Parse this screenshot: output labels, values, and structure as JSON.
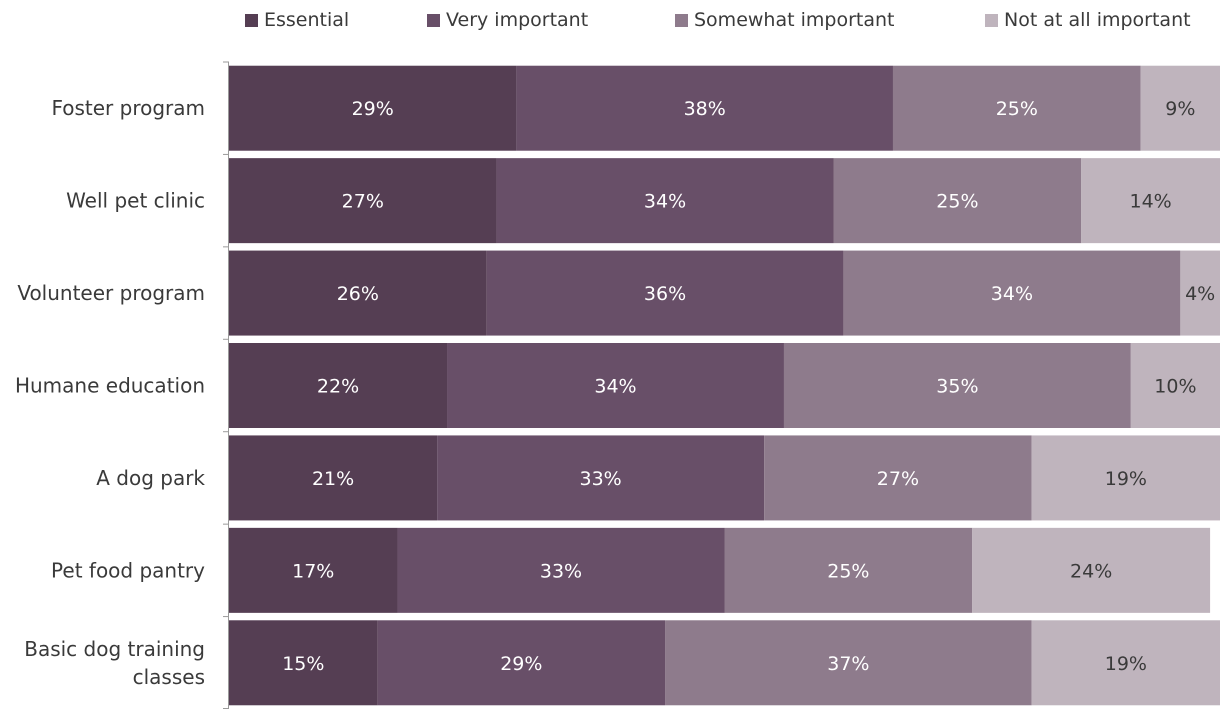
{
  "chart_data": {
    "type": "bar",
    "orientation": "horizontal",
    "stacked": true,
    "legend_position": "top",
    "grid": false,
    "xlim": [
      0,
      100
    ],
    "categories": [
      "Foster program",
      "Well pet clinic",
      "Volunteer program",
      "Humane education",
      "A dog park",
      "Pet food pantry",
      "Basic dog training classes"
    ],
    "category_lines": [
      [
        "Foster program"
      ],
      [
        "Well pet clinic"
      ],
      [
        "Volunteer program"
      ],
      [
        "Humane education"
      ],
      [
        "A dog park"
      ],
      [
        "Pet food pantry"
      ],
      [
        "Basic dog training",
        "classes"
      ]
    ],
    "series": [
      {
        "name": "Essential",
        "color": "#553E53",
        "label_color": "#ffffff",
        "values": [
          29,
          27,
          26,
          22,
          21,
          17,
          15
        ],
        "labels": [
          "29%",
          "27%",
          "26%",
          "22%",
          "21%",
          "17%",
          "15%"
        ]
      },
      {
        "name": "Very important",
        "color": "#684F68",
        "label_color": "#ffffff",
        "values": [
          38,
          34,
          36,
          34,
          33,
          33,
          29
        ],
        "labels": [
          "38%",
          "34%",
          "36%",
          "34%",
          "33%",
          "33%",
          "29%"
        ]
      },
      {
        "name": "Somewhat important",
        "color": "#8E7B8C",
        "label_color": "#ffffff",
        "values": [
          25,
          25,
          34,
          35,
          27,
          25,
          37
        ],
        "labels": [
          "25%",
          "25%",
          "34%",
          "35%",
          "27%",
          "25%",
          "37%"
        ]
      },
      {
        "name": "Not at all important",
        "color": "#BFB4BD",
        "label_color": "#3a3a3a",
        "values": [
          9,
          14,
          4,
          10,
          19,
          24,
          19
        ],
        "labels": [
          "9%",
          "14%",
          "4%",
          "10%",
          "19%",
          "24%",
          "19%"
        ]
      }
    ],
    "title": "",
    "xlabel": "",
    "ylabel": ""
  }
}
